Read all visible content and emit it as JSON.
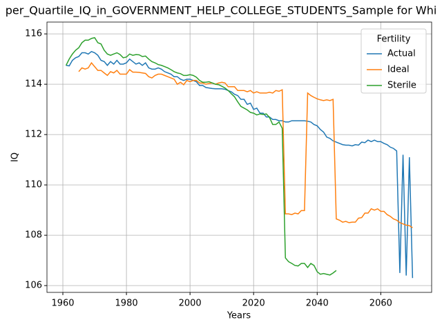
{
  "chart_data": {
    "type": "line",
    "title": "per_Quartile_IQ_in_GOVERNMENT_HELP_COLLEGE_STUDENTS_Sample for Whi",
    "x_label": "Years",
    "y_label": "IQ",
    "x": [
      1961,
      1962,
      1963,
      1964,
      1965,
      1966,
      1967,
      1968,
      1969,
      1970,
      1971,
      1972,
      1973,
      1974,
      1975,
      1976,
      1977,
      1978,
      1979,
      1980,
      1981,
      1982,
      1983,
      1984,
      1985,
      1986,
      1987,
      1988,
      1989,
      1990,
      1991,
      1992,
      1993,
      1994,
      1995,
      1996,
      1997,
      1998,
      1999,
      2000,
      2001,
      2002,
      2003,
      2004,
      2005,
      2006,
      2007,
      2008,
      2009,
      2010,
      2011,
      2012,
      2013,
      2014,
      2015,
      2016,
      2017,
      2018,
      2019,
      2020,
      2021,
      2022,
      2023,
      2024,
      2025,
      2026,
      2027,
      2028,
      2029,
      2030,
      2031,
      2032,
      2033,
      2034,
      2035,
      2036,
      2037,
      2038,
      2039,
      2040,
      2041,
      2042,
      2043,
      2044,
      2045,
      2046,
      2047,
      2048,
      2049,
      2050,
      2051,
      2052,
      2053,
      2054,
      2055,
      2056,
      2057,
      2058,
      2059,
      2060,
      2061,
      2062,
      2063,
      2064,
      2065,
      2066,
      2067,
      2068,
      2069,
      2070
    ],
    "series": [
      {
        "name": "Actual",
        "color": "#1f77b4",
        "values": [
          114.75,
          114.73,
          114.95,
          115.05,
          115.1,
          115.25,
          115.25,
          115.2,
          115.3,
          115.25,
          115.15,
          114.95,
          114.9,
          114.75,
          114.9,
          114.8,
          114.95,
          114.8,
          114.8,
          114.85,
          115.0,
          114.9,
          114.8,
          114.85,
          114.75,
          114.85,
          114.65,
          114.6,
          114.6,
          114.65,
          114.6,
          114.5,
          114.45,
          114.4,
          114.3,
          114.3,
          114.2,
          114.15,
          114.2,
          114.2,
          114.15,
          114.1,
          113.95,
          113.95,
          113.87,
          113.85,
          113.83,
          113.82,
          113.82,
          113.82,
          113.8,
          113.75,
          113.7,
          113.6,
          113.55,
          113.4,
          113.4,
          113.2,
          113.25,
          113.0,
          113.05,
          112.85,
          112.85,
          112.7,
          112.7,
          112.6,
          112.6,
          112.55,
          112.55,
          112.5,
          112.5,
          112.55,
          112.55,
          112.55,
          112.55,
          112.55,
          112.53,
          112.5,
          112.4,
          112.35,
          112.2,
          112.1,
          111.9,
          111.85,
          111.75,
          111.7,
          111.65,
          111.6,
          111.58,
          111.58,
          111.55,
          111.6,
          111.58,
          111.7,
          111.68,
          111.78,
          111.72,
          111.78,
          111.72,
          111.72,
          111.65,
          111.6,
          111.5,
          111.45,
          111.35,
          106.5,
          111.2,
          106.4,
          111.1,
          106.3
        ]
      },
      {
        "name": "Ideal",
        "color": "#ff7f0e",
        "values": [
          null,
          null,
          null,
          null,
          114.5,
          114.65,
          114.6,
          114.65,
          114.85,
          114.7,
          114.55,
          114.55,
          114.45,
          114.35,
          114.5,
          114.45,
          114.55,
          114.4,
          114.4,
          114.4,
          114.58,
          114.48,
          114.48,
          114.47,
          114.45,
          114.43,
          114.3,
          114.25,
          114.35,
          114.4,
          114.4,
          114.35,
          114.3,
          114.25,
          114.2,
          114.0,
          114.08,
          113.98,
          114.15,
          114.1,
          114.15,
          114.15,
          114.05,
          114.05,
          114.0,
          114.03,
          114.05,
          114.0,
          114.05,
          114.08,
          114.05,
          113.9,
          113.9,
          113.9,
          113.75,
          113.75,
          113.75,
          113.7,
          113.75,
          113.65,
          113.7,
          113.65,
          113.65,
          113.65,
          113.68,
          113.65,
          113.75,
          113.72,
          113.78,
          108.85,
          108.85,
          108.82,
          108.88,
          108.85,
          108.98,
          108.98,
          113.65,
          113.55,
          113.48,
          113.42,
          113.38,
          113.35,
          113.38,
          113.35,
          113.4,
          108.65,
          108.6,
          108.52,
          108.55,
          108.5,
          108.52,
          108.52,
          108.68,
          108.7,
          108.88,
          108.88,
          109.05,
          109.0,
          109.05,
          108.95,
          108.95,
          108.82,
          108.75,
          108.65,
          108.6,
          108.5,
          108.45,
          108.4,
          108.38,
          108.3
        ]
      },
      {
        "name": "Sterile",
        "color": "#2ca02c",
        "values": [
          114.75,
          115.0,
          115.2,
          115.35,
          115.45,
          115.65,
          115.75,
          115.75,
          115.82,
          115.85,
          115.65,
          115.6,
          115.35,
          115.2,
          115.15,
          115.2,
          115.25,
          115.18,
          115.05,
          115.08,
          115.2,
          115.15,
          115.18,
          115.17,
          115.1,
          115.12,
          115.0,
          114.9,
          114.85,
          114.78,
          114.75,
          114.7,
          114.65,
          114.58,
          114.5,
          114.45,
          114.42,
          114.35,
          114.35,
          114.38,
          114.35,
          114.28,
          114.15,
          114.08,
          114.08,
          114.1,
          114.05,
          114.0,
          113.98,
          113.92,
          113.85,
          113.75,
          113.62,
          113.5,
          113.3,
          113.12,
          113.05,
          112.98,
          112.88,
          112.85,
          112.78,
          112.82,
          112.8,
          112.82,
          112.68,
          112.4,
          112.4,
          112.5,
          112.25,
          107.1,
          106.95,
          106.88,
          106.8,
          106.78,
          106.88,
          106.88,
          106.72,
          106.88,
          106.8,
          106.55,
          106.45,
          106.48,
          106.45,
          106.42,
          106.5,
          106.6,
          null,
          null,
          null,
          null,
          null,
          null,
          null,
          null,
          null,
          null,
          null,
          null,
          null,
          null,
          null,
          null,
          null,
          null,
          null,
          null,
          null,
          null,
          null,
          null
        ]
      }
    ],
    "xlim": [
      1955,
      2076
    ],
    "xticks": [
      1960,
      1980,
      2000,
      2020,
      2040,
      2060
    ],
    "ylim": [
      105.73,
      116.47
    ],
    "yticks": [
      106,
      108,
      110,
      112,
      114,
      116
    ],
    "grid": true,
    "legend_title": "Fertility",
    "legend_position": "upper right"
  }
}
